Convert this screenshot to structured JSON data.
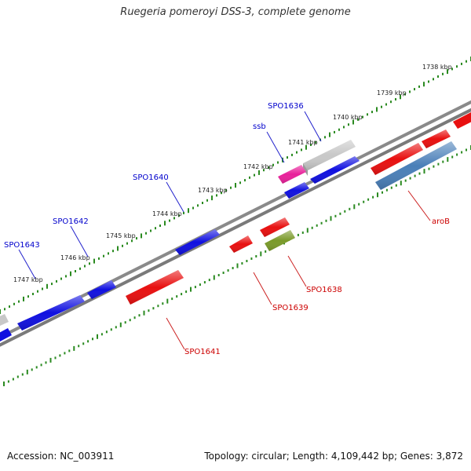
{
  "title": "Ruegeria pomeroyi DSS-3, complete genome",
  "footer": {
    "accession_label": "Accession:",
    "accession": "NC_003911",
    "topology_text": "Topology: circular; Length: 4,109,442 bp; Genes: 3,872"
  },
  "colors": {
    "forward": "#1010e0",
    "reverse": "#e81010",
    "unknown": "#c8c8c8",
    "highlight_pink": "#e8209a",
    "olive": "#7a9a2a",
    "steel": "#4a7fb8",
    "backbone": "#808080",
    "tick": "#2a8a20",
    "label_forward": "#0000cc",
    "label_reverse": "#cc0000"
  },
  "scale": {
    "markers": [
      {
        "text": "1738 kbp"
      },
      {
        "text": "1739 kbp"
      },
      {
        "text": "1740 kbp"
      },
      {
        "text": "1741 kbp"
      },
      {
        "text": "1742 kbp"
      },
      {
        "text": "1743 kbp"
      },
      {
        "text": "1744 kbp"
      },
      {
        "text": "1745 kbp"
      },
      {
        "text": "1746 kbp"
      },
      {
        "text": "1747 kbp"
      }
    ]
  },
  "genes": [
    {
      "name": "SPO1636",
      "strand": "forward",
      "color": "unknown"
    },
    {
      "name": "ssb",
      "strand": "forward",
      "color": "highlight_pink"
    },
    {
      "name": "SPO1640",
      "strand": "forward",
      "color": "forward"
    },
    {
      "name": "SPO1642",
      "strand": "forward",
      "color": "forward"
    },
    {
      "name": "SPO1643",
      "strand": "forward",
      "color": "forward"
    },
    {
      "name": "aroB",
      "strand": "reverse",
      "color": "steel"
    },
    {
      "name": "SPO1638",
      "strand": "reverse",
      "color": "olive"
    },
    {
      "name": "SPO1639",
      "strand": "reverse",
      "color": "reverse"
    },
    {
      "name": "SPO1641",
      "strand": "reverse",
      "color": "reverse"
    }
  ]
}
